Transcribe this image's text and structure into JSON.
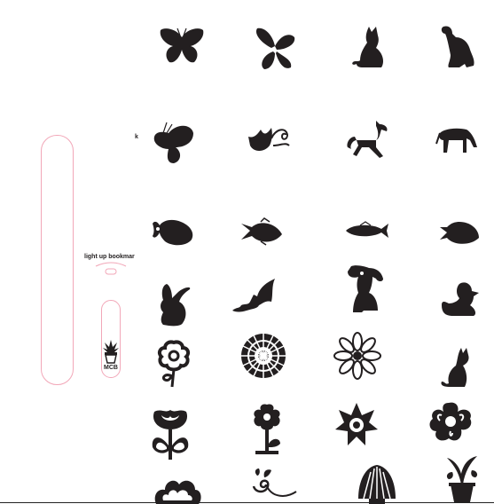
{
  "labels": {
    "k": "k",
    "bookmark": "light up bookmar",
    "mcb": "MCB"
  },
  "colors": {
    "fill": "#231f20",
    "cut_line": "#f2a7b8",
    "background": "#ffffff"
  },
  "shapes": [
    {
      "name": "butterfly-icon"
    },
    {
      "name": "butterfly-side-icon"
    },
    {
      "name": "cat-sitting-icon"
    },
    {
      "name": "dog-sitting-icon"
    },
    {
      "name": "butterfly-profile-icon"
    },
    {
      "name": "bird-swirl-icon"
    },
    {
      "name": "horse-icon"
    },
    {
      "name": "horse-grazing-icon"
    },
    {
      "name": "puffer-fish-icon"
    },
    {
      "name": "fish-icon"
    },
    {
      "name": "long-fish-icon"
    },
    {
      "name": "tropical-fish-icon"
    },
    {
      "name": "rabbit-icon"
    },
    {
      "name": "bat-icon"
    },
    {
      "name": "dog-icon"
    },
    {
      "name": "duck-icon"
    },
    {
      "name": "flower-stem-icon"
    },
    {
      "name": "sunflower-icon"
    },
    {
      "name": "daisy-icon"
    },
    {
      "name": "cat-icon"
    },
    {
      "name": "tulip-icon"
    },
    {
      "name": "flower-pot-icon"
    },
    {
      "name": "flower-icon"
    },
    {
      "name": "flower-round-icon"
    },
    {
      "name": "cloud-flower-icon"
    },
    {
      "name": "vine-icon"
    },
    {
      "name": "shell-icon"
    },
    {
      "name": "potted-plant-icon"
    }
  ]
}
